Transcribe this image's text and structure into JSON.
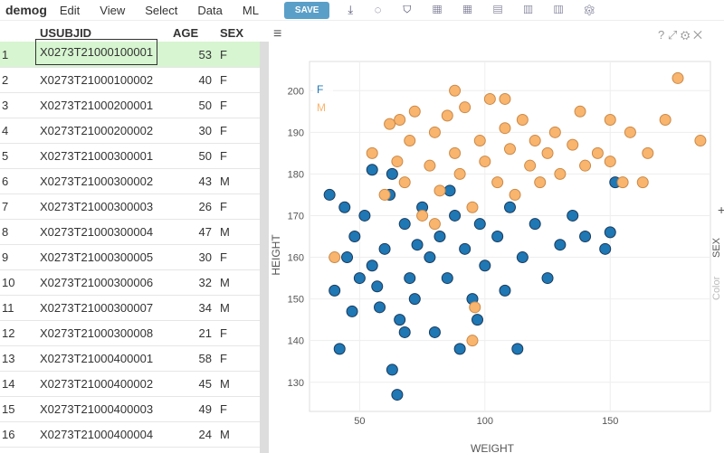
{
  "app": {
    "title": "demog",
    "menus": [
      "Edit",
      "View",
      "Select",
      "Data",
      "ML"
    ],
    "save": "SAVE"
  },
  "table": {
    "columns": [
      "USUBJID",
      "AGE",
      "SEX"
    ],
    "row_numbers": [
      1,
      2,
      3,
      4,
      5,
      6,
      7,
      8,
      9,
      10,
      11,
      12,
      13,
      14,
      15,
      16
    ],
    "rows": [
      [
        "X0273T21000100001",
        53,
        "F"
      ],
      [
        "X0273T21000100002",
        40,
        "F"
      ],
      [
        "X0273T21000200001",
        50,
        "F"
      ],
      [
        "X0273T21000200002",
        30,
        "F"
      ],
      [
        "X0273T21000300001",
        50,
        "F"
      ],
      [
        "X0273T21000300002",
        43,
        "M"
      ],
      [
        "X0273T21000300003",
        26,
        "F"
      ],
      [
        "X0273T21000300004",
        47,
        "M"
      ],
      [
        "X0273T21000300005",
        30,
        "F"
      ],
      [
        "X0273T21000300006",
        32,
        "M"
      ],
      [
        "X0273T21000300007",
        34,
        "M"
      ],
      [
        "X0273T21000300008",
        21,
        "F"
      ],
      [
        "X0273T21000400001",
        58,
        "F"
      ],
      [
        "X0273T21000400002",
        45,
        "M"
      ],
      [
        "X0273T21000400003",
        49,
        "F"
      ],
      [
        "X0273T21000400004",
        24,
        "M"
      ]
    ]
  },
  "chart_data": {
    "type": "scatter",
    "x_label": "WEIGHT",
    "y_label": "HEIGHT",
    "color_label": "Color",
    "color_column": "SEX",
    "xlim": [
      30,
      190
    ],
    "ylim": [
      123,
      207
    ],
    "xticks": [
      50,
      100,
      150
    ],
    "yticks": [
      130,
      140,
      150,
      160,
      170,
      180,
      190,
      200
    ],
    "grid": true,
    "legend": "top-left",
    "series": [
      {
        "name": "F",
        "color": "#1f77b4",
        "x": [
          40,
          42,
          45,
          48,
          50,
          52,
          55,
          58,
          60,
          62,
          65,
          66,
          68,
          70,
          72,
          75,
          78,
          80,
          82,
          85,
          88,
          90,
          92,
          95,
          98,
          100,
          105,
          108,
          110,
          115,
          120,
          125,
          130,
          135,
          140,
          148,
          150,
          152,
          44,
          55,
          63,
          68,
          86,
          38,
          47,
          57,
          73,
          97,
          113,
          63
        ],
        "y": [
          152,
          138,
          160,
          165,
          155,
          170,
          158,
          148,
          162,
          175,
          127,
          145,
          168,
          155,
          150,
          172,
          160,
          142,
          165,
          155,
          170,
          138,
          162,
          150,
          168,
          158,
          165,
          152,
          172,
          160,
          168,
          155,
          163,
          170,
          165,
          162,
          166,
          178,
          172,
          181,
          133,
          142,
          176,
          175,
          147,
          153,
          163,
          145,
          138,
          180
        ]
      },
      {
        "name": "M",
        "color": "#f9b46d",
        "x": [
          40,
          55,
          60,
          62,
          65,
          68,
          70,
          72,
          75,
          78,
          80,
          82,
          85,
          88,
          90,
          92,
          95,
          98,
          100,
          102,
          105,
          108,
          110,
          112,
          115,
          118,
          120,
          122,
          125,
          128,
          130,
          135,
          140,
          145,
          150,
          155,
          158,
          163,
          165,
          172,
          177,
          186,
          96,
          95,
          80,
          108,
          88,
          66,
          138,
          150
        ],
        "y": [
          160,
          185,
          175,
          192,
          183,
          178,
          188,
          195,
          170,
          182,
          190,
          176,
          194,
          185,
          180,
          196,
          172,
          188,
          183,
          198,
          178,
          191,
          186,
          175,
          193,
          182,
          188,
          178,
          185,
          190,
          180,
          187,
          182,
          185,
          183,
          178,
          190,
          178,
          185,
          193,
          203,
          188,
          148,
          140,
          168,
          198,
          200,
          193,
          195,
          193
        ]
      }
    ]
  }
}
